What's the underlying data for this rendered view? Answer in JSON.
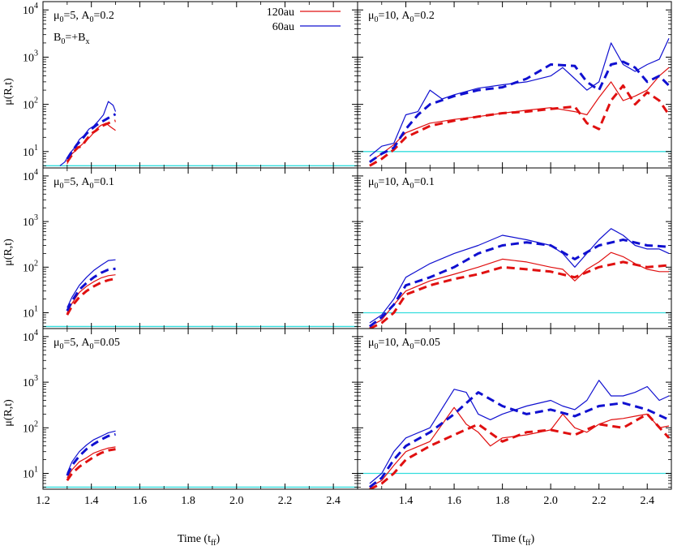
{
  "figure": {
    "ylabel": "μ(R,t)",
    "xlabel_main": "Time (t",
    "xlabel_sub": "ff",
    "xlabel_close": ")",
    "legend": [
      {
        "label": "120au",
        "color": "#e01010"
      },
      {
        "label": "60au",
        "color": "#1010d0"
      }
    ],
    "reference_color": "#33dddd"
  },
  "chart_data": [
    {
      "type": "line",
      "panel": "top-left",
      "title_mu": "μ",
      "title_mu_sub": "0",
      "title_mu_val": "=5, A",
      "title_a_sub": "0",
      "title_a_val": "=0.2",
      "note_b": "B",
      "note_b_sub1": "0",
      "note_b_mid": "=+B",
      "note_b_sub2": "x",
      "xlim": [
        1.2,
        2.5
      ],
      "ylim": [
        4.5,
        15000
      ],
      "yscale": "log",
      "reference_mu": 5,
      "series": [
        {
          "name": "120au",
          "style": "thin",
          "x": [
            1.3,
            1.32,
            1.34,
            1.36,
            1.38,
            1.4,
            1.42,
            1.44,
            1.46,
            1.48,
            1.5
          ],
          "y": [
            5.5,
            9,
            11,
            14,
            17,
            22,
            30,
            36,
            40,
            33,
            28
          ]
        },
        {
          "name": "120au",
          "style": "dashed",
          "x": [
            1.3,
            1.32,
            1.34,
            1.36,
            1.38,
            1.4,
            1.42,
            1.44,
            1.46,
            1.48,
            1.5
          ],
          "y": [
            6,
            8.5,
            12,
            13,
            18,
            24,
            28,
            34,
            38,
            42,
            45
          ]
        },
        {
          "name": "60au",
          "style": "thin",
          "x": [
            1.27,
            1.29,
            1.31,
            1.33,
            1.35,
            1.37,
            1.39,
            1.41,
            1.43,
            1.45,
            1.47,
            1.49,
            1.5
          ],
          "y": [
            5,
            6,
            9,
            12,
            18,
            22,
            30,
            35,
            45,
            60,
            115,
            95,
            70
          ]
        },
        {
          "name": "60au",
          "style": "dashed",
          "x": [
            1.3,
            1.32,
            1.34,
            1.36,
            1.38,
            1.4,
            1.42,
            1.44,
            1.46,
            1.48,
            1.5
          ],
          "y": [
            7,
            10,
            14,
            18,
            24,
            30,
            36,
            42,
            48,
            55,
            62
          ]
        }
      ]
    },
    {
      "type": "line",
      "panel": "top-right",
      "title_mu": "μ",
      "title_mu_sub": "0",
      "title_mu_val": "=10, A",
      "title_a_sub": "0",
      "title_a_val": "=0.2",
      "xlim": [
        1.2,
        2.5
      ],
      "ylim": [
        4.5,
        15000
      ],
      "yscale": "log",
      "reference_mu": 10,
      "series": [
        {
          "name": "120au",
          "style": "thin",
          "x": [
            1.25,
            1.3,
            1.35,
            1.4,
            1.5,
            1.6,
            1.7,
            1.8,
            1.9,
            2.0,
            2.1,
            2.15,
            2.2,
            2.25,
            2.3,
            2.35,
            2.4,
            2.45,
            2.49
          ],
          "y": [
            6,
            9,
            14,
            25,
            40,
            48,
            55,
            65,
            75,
            85,
            70,
            60,
            140,
            300,
            120,
            150,
            200,
            400,
            600
          ]
        },
        {
          "name": "120au",
          "style": "dashed",
          "x": [
            1.25,
            1.3,
            1.35,
            1.4,
            1.5,
            1.6,
            1.7,
            1.8,
            1.9,
            2.0,
            2.1,
            2.15,
            2.2,
            2.25,
            2.3,
            2.35,
            2.4,
            2.45,
            2.49
          ],
          "y": [
            5,
            7,
            11,
            20,
            35,
            45,
            55,
            65,
            70,
            80,
            90,
            40,
            30,
            120,
            250,
            100,
            180,
            120,
            60
          ]
        },
        {
          "name": "60au",
          "style": "thin",
          "x": [
            1.25,
            1.3,
            1.35,
            1.4,
            1.45,
            1.5,
            1.55,
            1.6,
            1.7,
            1.8,
            1.9,
            2.0,
            2.05,
            2.1,
            2.15,
            2.2,
            2.25,
            2.3,
            2.35,
            2.4,
            2.45,
            2.49
          ],
          "y": [
            8,
            13,
            15,
            60,
            70,
            200,
            130,
            160,
            220,
            260,
            300,
            400,
            600,
            350,
            200,
            300,
            2000,
            700,
            500,
            700,
            900,
            2500
          ]
        },
        {
          "name": "60au",
          "style": "dashed",
          "x": [
            1.25,
            1.3,
            1.35,
            1.4,
            1.45,
            1.5,
            1.6,
            1.7,
            1.8,
            1.9,
            2.0,
            2.1,
            2.15,
            2.2,
            2.25,
            2.3,
            2.35,
            2.4,
            2.45,
            2.49
          ],
          "y": [
            6,
            9,
            12,
            30,
            60,
            100,
            150,
            200,
            230,
            350,
            700,
            650,
            300,
            200,
            700,
            800,
            600,
            300,
            400,
            250
          ]
        }
      ]
    },
    {
      "type": "line",
      "panel": "middle-left",
      "title_mu": "μ",
      "title_mu_sub": "0",
      "title_mu_val": "=5, A",
      "title_a_sub": "0",
      "title_a_val": "=0.1",
      "xlim": [
        1.2,
        2.5
      ],
      "ylim": [
        4.5,
        15000
      ],
      "yscale": "log",
      "reference_mu": 5,
      "series": [
        {
          "name": "120au",
          "style": "thin",
          "x": [
            1.3,
            1.32,
            1.35,
            1.38,
            1.41,
            1.44,
            1.47,
            1.5
          ],
          "y": [
            10,
            16,
            28,
            38,
            48,
            58,
            65,
            68
          ]
        },
        {
          "name": "120au",
          "style": "dashed",
          "x": [
            1.3,
            1.32,
            1.35,
            1.38,
            1.41,
            1.44,
            1.47,
            1.5
          ],
          "y": [
            9,
            14,
            22,
            30,
            38,
            46,
            52,
            56
          ]
        },
        {
          "name": "60au",
          "style": "thin",
          "x": [
            1.3,
            1.32,
            1.35,
            1.38,
            1.41,
            1.44,
            1.47,
            1.5
          ],
          "y": [
            13,
            22,
            40,
            60,
            85,
            110,
            140,
            145
          ]
        },
        {
          "name": "60au",
          "style": "dashed",
          "x": [
            1.3,
            1.32,
            1.35,
            1.38,
            1.41,
            1.44,
            1.47,
            1.5
          ],
          "y": [
            11,
            18,
            32,
            45,
            60,
            75,
            88,
            92
          ]
        }
      ]
    },
    {
      "type": "line",
      "panel": "middle-right",
      "title_mu": "μ",
      "title_mu_sub": "0",
      "title_mu_val": "=10, A",
      "title_a_sub": "0",
      "title_a_val": "=0.1",
      "xlim": [
        1.2,
        2.5
      ],
      "ylim": [
        4.5,
        15000
      ],
      "yscale": "log",
      "reference_mu": 10,
      "series": [
        {
          "name": "120au",
          "style": "thin",
          "x": [
            1.25,
            1.3,
            1.35,
            1.4,
            1.5,
            1.6,
            1.7,
            1.8,
            1.9,
            2.0,
            2.05,
            2.1,
            2.15,
            2.2,
            2.25,
            2.3,
            2.35,
            2.4,
            2.45,
            2.49
          ],
          "y": [
            5,
            7,
            15,
            30,
            50,
            70,
            100,
            150,
            130,
            100,
            90,
            50,
            90,
            130,
            210,
            170,
            120,
            90,
            80,
            80
          ]
        },
        {
          "name": "120au",
          "style": "dashed",
          "x": [
            1.25,
            1.3,
            1.35,
            1.4,
            1.5,
            1.6,
            1.7,
            1.8,
            1.9,
            2.0,
            2.1,
            2.2,
            2.3,
            2.4,
            2.49
          ],
          "y": [
            4.5,
            6,
            10,
            25,
            40,
            55,
            70,
            100,
            90,
            80,
            60,
            100,
            130,
            100,
            110
          ]
        },
        {
          "name": "60au",
          "style": "thin",
          "x": [
            1.25,
            1.3,
            1.35,
            1.4,
            1.5,
            1.6,
            1.7,
            1.8,
            1.9,
            2.0,
            2.05,
            2.1,
            2.15,
            2.2,
            2.25,
            2.3,
            2.35,
            2.4,
            2.45,
            2.49
          ],
          "y": [
            6,
            9,
            20,
            60,
            120,
            200,
            300,
            500,
            400,
            300,
            200,
            100,
            200,
            400,
            700,
            500,
            300,
            250,
            250,
            200
          ]
        },
        {
          "name": "60au",
          "style": "dashed",
          "x": [
            1.25,
            1.3,
            1.35,
            1.4,
            1.5,
            1.6,
            1.7,
            1.8,
            1.9,
            2.0,
            2.1,
            2.2,
            2.3,
            2.4,
            2.49
          ],
          "y": [
            5,
            8,
            15,
            40,
            60,
            100,
            200,
            300,
            350,
            300,
            150,
            300,
            400,
            300,
            280
          ]
        }
      ]
    },
    {
      "type": "line",
      "panel": "bottom-left",
      "title_mu": "μ",
      "title_mu_sub": "0",
      "title_mu_val": "=5, A",
      "title_a_sub": "0",
      "title_a_val": "=0.05",
      "xlim": [
        1.2,
        2.5
      ],
      "ylim": [
        4.5,
        15000
      ],
      "yscale": "log",
      "reference_mu": 5,
      "series": [
        {
          "name": "120au",
          "style": "thin",
          "x": [
            1.3,
            1.32,
            1.35,
            1.38,
            1.41,
            1.44,
            1.47,
            1.5
          ],
          "y": [
            8,
            12,
            18,
            22,
            28,
            32,
            36,
            38
          ]
        },
        {
          "name": "120au",
          "style": "dashed",
          "x": [
            1.3,
            1.32,
            1.35,
            1.38,
            1.41,
            1.44,
            1.47,
            1.5
          ],
          "y": [
            7,
            10,
            14,
            18,
            23,
            28,
            32,
            34
          ]
        },
        {
          "name": "60au",
          "style": "thin",
          "x": [
            1.3,
            1.32,
            1.35,
            1.38,
            1.41,
            1.44,
            1.47,
            1.5
          ],
          "y": [
            10,
            18,
            30,
            42,
            55,
            65,
            78,
            85
          ]
        },
        {
          "name": "60au",
          "style": "dashed",
          "x": [
            1.3,
            1.32,
            1.35,
            1.38,
            1.41,
            1.44,
            1.47,
            1.5
          ],
          "y": [
            9,
            15,
            24,
            34,
            44,
            55,
            66,
            72
          ]
        }
      ]
    },
    {
      "type": "line",
      "panel": "bottom-right",
      "title_mu": "μ",
      "title_mu_sub": "0",
      "title_mu_val": "=10, A",
      "title_a_sub": "0",
      "title_a_val": "=0.05",
      "xlim": [
        1.2,
        2.5
      ],
      "ylim": [
        4.5,
        15000
      ],
      "yscale": "log",
      "reference_mu": 10,
      "series": [
        {
          "name": "120au",
          "style": "thin",
          "x": [
            1.25,
            1.3,
            1.35,
            1.4,
            1.5,
            1.6,
            1.65,
            1.7,
            1.75,
            1.8,
            1.9,
            2.0,
            2.05,
            2.1,
            2.15,
            2.2,
            2.25,
            2.3,
            2.35,
            2.4,
            2.45,
            2.49
          ],
          "y": [
            5,
            7,
            15,
            30,
            50,
            280,
            120,
            80,
            40,
            60,
            70,
            90,
            200,
            100,
            80,
            120,
            150,
            160,
            180,
            200,
            100,
            110
          ]
        },
        {
          "name": "120au",
          "style": "dashed",
          "x": [
            1.25,
            1.3,
            1.35,
            1.4,
            1.5,
            1.6,
            1.7,
            1.8,
            1.9,
            2.0,
            2.1,
            2.2,
            2.3,
            2.4,
            2.49
          ],
          "y": [
            4.5,
            6,
            10,
            20,
            40,
            70,
            120,
            50,
            80,
            90,
            70,
            120,
            100,
            200,
            60
          ]
        },
        {
          "name": "60au",
          "style": "thin",
          "x": [
            1.25,
            1.3,
            1.35,
            1.4,
            1.5,
            1.6,
            1.65,
            1.7,
            1.75,
            1.8,
            1.9,
            2.0,
            2.05,
            2.1,
            2.15,
            2.2,
            2.25,
            2.3,
            2.35,
            2.4,
            2.45,
            2.49
          ],
          "y": [
            6,
            10,
            30,
            60,
            100,
            700,
            600,
            200,
            150,
            200,
            300,
            400,
            300,
            250,
            400,
            1100,
            500,
            500,
            600,
            800,
            400,
            500
          ]
        },
        {
          "name": "60au",
          "style": "dashed",
          "x": [
            1.25,
            1.3,
            1.35,
            1.4,
            1.5,
            1.6,
            1.7,
            1.8,
            1.9,
            2.0,
            2.1,
            2.2,
            2.3,
            2.4,
            2.49
          ],
          "y": [
            5,
            8,
            20,
            40,
            80,
            200,
            600,
            300,
            200,
            250,
            180,
            300,
            350,
            250,
            150
          ]
        }
      ]
    }
  ]
}
